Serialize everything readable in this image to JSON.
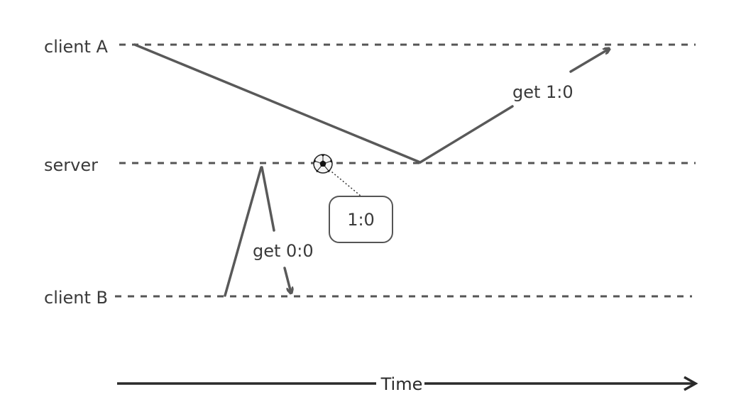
{
  "lanes": {
    "client_a": "client A",
    "server": "server",
    "client_b": "client B"
  },
  "messages": {
    "get_1_0": "get 1:0",
    "get_0_0": "get 0:0"
  },
  "state_box": {
    "value": "1:0",
    "icon": "soccer-ball-icon"
  },
  "time_axis": {
    "label": "Time"
  },
  "colors": {
    "line": "#595959",
    "axis": "#2a2a2a",
    "text": "#3a3a3a"
  }
}
